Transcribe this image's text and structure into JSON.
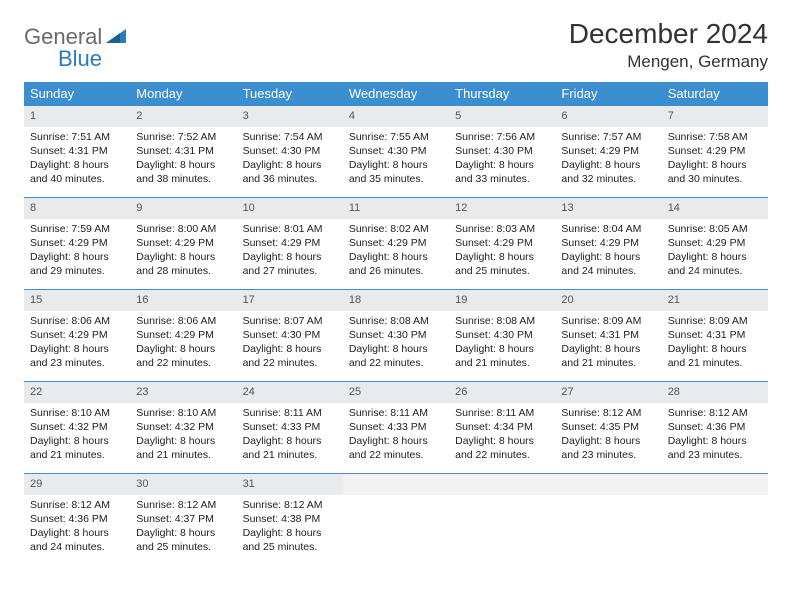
{
  "logo": {
    "word1": "General",
    "word2": "Blue"
  },
  "title": "December 2024",
  "location": "Mengen, Germany",
  "theme": {
    "header_bg": "#3b8fd1",
    "header_text": "#ffffff",
    "daynum_bg": "#e9eaeb",
    "daynum_text": "#555555",
    "row_divider": "#3b8fd1",
    "body_text": "#222222",
    "page_bg": "#ffffff",
    "logo_gray": "#6b6b6b",
    "logo_blue": "#2b7bbf"
  },
  "weekdays": [
    "Sunday",
    "Monday",
    "Tuesday",
    "Wednesday",
    "Thursday",
    "Friday",
    "Saturday"
  ],
  "weeks": [
    [
      {
        "n": "1",
        "sr": "7:51 AM",
        "ss": "4:31 PM",
        "dl": "8 hours and 40 minutes."
      },
      {
        "n": "2",
        "sr": "7:52 AM",
        "ss": "4:31 PM",
        "dl": "8 hours and 38 minutes."
      },
      {
        "n": "3",
        "sr": "7:54 AM",
        "ss": "4:30 PM",
        "dl": "8 hours and 36 minutes."
      },
      {
        "n": "4",
        "sr": "7:55 AM",
        "ss": "4:30 PM",
        "dl": "8 hours and 35 minutes."
      },
      {
        "n": "5",
        "sr": "7:56 AM",
        "ss": "4:30 PM",
        "dl": "8 hours and 33 minutes."
      },
      {
        "n": "6",
        "sr": "7:57 AM",
        "ss": "4:29 PM",
        "dl": "8 hours and 32 minutes."
      },
      {
        "n": "7",
        "sr": "7:58 AM",
        "ss": "4:29 PM",
        "dl": "8 hours and 30 minutes."
      }
    ],
    [
      {
        "n": "8",
        "sr": "7:59 AM",
        "ss": "4:29 PM",
        "dl": "8 hours and 29 minutes."
      },
      {
        "n": "9",
        "sr": "8:00 AM",
        "ss": "4:29 PM",
        "dl": "8 hours and 28 minutes."
      },
      {
        "n": "10",
        "sr": "8:01 AM",
        "ss": "4:29 PM",
        "dl": "8 hours and 27 minutes."
      },
      {
        "n": "11",
        "sr": "8:02 AM",
        "ss": "4:29 PM",
        "dl": "8 hours and 26 minutes."
      },
      {
        "n": "12",
        "sr": "8:03 AM",
        "ss": "4:29 PM",
        "dl": "8 hours and 25 minutes."
      },
      {
        "n": "13",
        "sr": "8:04 AM",
        "ss": "4:29 PM",
        "dl": "8 hours and 24 minutes."
      },
      {
        "n": "14",
        "sr": "8:05 AM",
        "ss": "4:29 PM",
        "dl": "8 hours and 24 minutes."
      }
    ],
    [
      {
        "n": "15",
        "sr": "8:06 AM",
        "ss": "4:29 PM",
        "dl": "8 hours and 23 minutes."
      },
      {
        "n": "16",
        "sr": "8:06 AM",
        "ss": "4:29 PM",
        "dl": "8 hours and 22 minutes."
      },
      {
        "n": "17",
        "sr": "8:07 AM",
        "ss": "4:30 PM",
        "dl": "8 hours and 22 minutes."
      },
      {
        "n": "18",
        "sr": "8:08 AM",
        "ss": "4:30 PM",
        "dl": "8 hours and 22 minutes."
      },
      {
        "n": "19",
        "sr": "8:08 AM",
        "ss": "4:30 PM",
        "dl": "8 hours and 21 minutes."
      },
      {
        "n": "20",
        "sr": "8:09 AM",
        "ss": "4:31 PM",
        "dl": "8 hours and 21 minutes."
      },
      {
        "n": "21",
        "sr": "8:09 AM",
        "ss": "4:31 PM",
        "dl": "8 hours and 21 minutes."
      }
    ],
    [
      {
        "n": "22",
        "sr": "8:10 AM",
        "ss": "4:32 PM",
        "dl": "8 hours and 21 minutes."
      },
      {
        "n": "23",
        "sr": "8:10 AM",
        "ss": "4:32 PM",
        "dl": "8 hours and 21 minutes."
      },
      {
        "n": "24",
        "sr": "8:11 AM",
        "ss": "4:33 PM",
        "dl": "8 hours and 21 minutes."
      },
      {
        "n": "25",
        "sr": "8:11 AM",
        "ss": "4:33 PM",
        "dl": "8 hours and 22 minutes."
      },
      {
        "n": "26",
        "sr": "8:11 AM",
        "ss": "4:34 PM",
        "dl": "8 hours and 22 minutes."
      },
      {
        "n": "27",
        "sr": "8:12 AM",
        "ss": "4:35 PM",
        "dl": "8 hours and 23 minutes."
      },
      {
        "n": "28",
        "sr": "8:12 AM",
        "ss": "4:36 PM",
        "dl": "8 hours and 23 minutes."
      }
    ],
    [
      {
        "n": "29",
        "sr": "8:12 AM",
        "ss": "4:36 PM",
        "dl": "8 hours and 24 minutes."
      },
      {
        "n": "30",
        "sr": "8:12 AM",
        "ss": "4:37 PM",
        "dl": "8 hours and 25 minutes."
      },
      {
        "n": "31",
        "sr": "8:12 AM",
        "ss": "4:38 PM",
        "dl": "8 hours and 25 minutes."
      },
      null,
      null,
      null,
      null
    ]
  ],
  "labels": {
    "sunrise": "Sunrise: ",
    "sunset": "Sunset: ",
    "daylight": "Daylight: "
  }
}
